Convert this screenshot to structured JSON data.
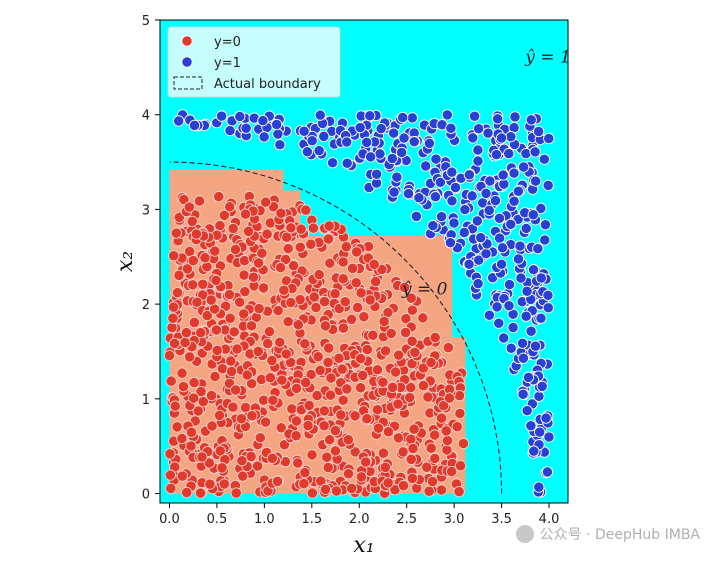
{
  "chart_data": {
    "type": "scatter",
    "xlabel": "x₁",
    "ylabel": "x₂",
    "xlim": [
      -0.1,
      4.2
    ],
    "ylim": [
      -0.1,
      5.0
    ],
    "xticks": [
      "0.0",
      "0.5",
      "1.0",
      "1.5",
      "2.0",
      "2.5",
      "3.0",
      "3.5",
      "4.0"
    ],
    "yticks": [
      "0",
      "1",
      "2",
      "3",
      "4",
      "5"
    ],
    "legend_position": "top-left",
    "legend": [
      {
        "label": "y=0",
        "marker": "circle",
        "color": "#e0392d"
      },
      {
        "label": "y=1",
        "marker": "circle",
        "color": "#2a3fd4"
      },
      {
        "label": "Actual boundary",
        "marker": "dashed-box",
        "color": "#222222"
      }
    ],
    "annotations": [
      {
        "text": "ŷ = 1",
        "x": 3.75,
        "y": 4.55
      },
      {
        "text": "ŷ = 0",
        "x": 2.45,
        "y": 2.1
      }
    ],
    "background_color": "#00ffff",
    "decision_region_color": "#f4a582",
    "decision_regions_y0": [
      [
        0.0,
        3.12,
        0.0,
        1.65
      ],
      [
        0.0,
        2.98,
        1.65,
        2.72
      ],
      [
        0.0,
        1.38,
        2.72,
        3.2
      ],
      [
        0.0,
        1.2,
        3.2,
        3.42
      ]
    ],
    "actual_boundary": {
      "shape": "circle",
      "center": [
        0,
        0
      ],
      "radius": 3.5
    },
    "series": [
      {
        "name": "y=0",
        "color": "#e0392d",
        "n_points": 950,
        "region": "x1² + x2² < 3.5², x1 ≤ 3.1, x2 ≤ 3.15"
      },
      {
        "name": "y=1",
        "color": "#2a3fd4",
        "n_points": 420,
        "region": "x1² + x2² > 3.5², x1 ≤ 4.0, x2 ≤ 4.0"
      }
    ]
  },
  "watermark": {
    "text": "公众号 · DeepHub IMBA"
  }
}
